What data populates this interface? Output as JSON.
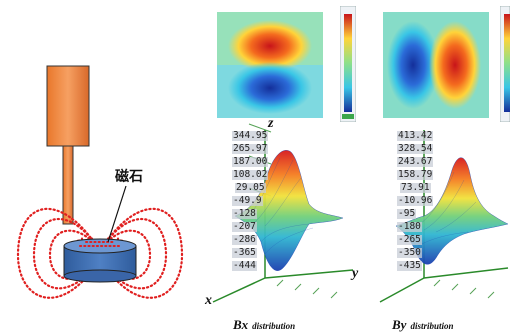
{
  "magnet_label": "磁石",
  "bx_panel": {
    "ticks": [
      "344.95",
      "265.97",
      "187.00",
      "108.02",
      "29.05",
      "-49.9",
      "-128",
      "-207",
      "-286",
      "-365",
      "-444"
    ],
    "axis_z": "z",
    "axis_y": "y",
    "axis_x": "x",
    "caption_main": "Bx",
    "caption_sub": "distribution"
  },
  "by_panel": {
    "ticks": [
      "413.42",
      "328.54",
      "243.67",
      "158.79",
      "73.91",
      "-10.96",
      "-95",
      "-180",
      "-265",
      "-350",
      "-435"
    ],
    "caption_main": "By",
    "caption_sub": "distribution"
  },
  "colors": {
    "sensor_body": "#f08a3c",
    "magnet": "#3f6fb3",
    "field_lines": "#e02020",
    "heatmap_red": "#d7191c",
    "heatmap_blue": "#1a3fb0"
  }
}
